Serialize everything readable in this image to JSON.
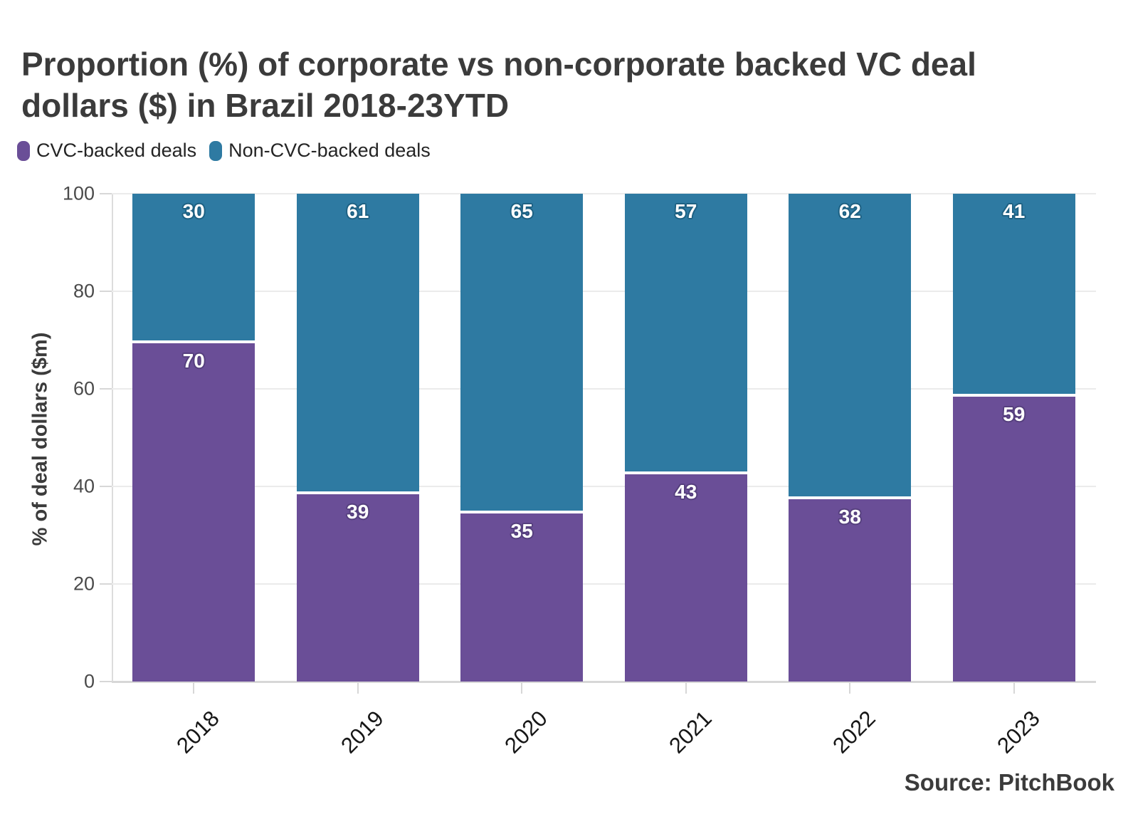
{
  "header": {
    "title_line1": "Proportion (%) of corporate vs non-corporate backed VC deal",
    "title_line2": "dollars ($) in Brazil 2018-23YTD"
  },
  "chart_data": {
    "type": "bar",
    "stacked": true,
    "title": "Proportion (%) of corporate vs non-corporate backed VC deal dollars ($) in Brazil 2018-23YTD",
    "categories": [
      "2018",
      "2019",
      "2020",
      "2021",
      "2022",
      "2023"
    ],
    "series": [
      {
        "name": "CVC-backed deals",
        "color": "#6a4e97",
        "label_halo": "#56407e",
        "values": [
          70,
          39,
          35,
          43,
          38,
          59
        ]
      },
      {
        "name": "Non-CVC-backed deals",
        "color": "#2e7aa2",
        "label_halo": "#1e6183",
        "values": [
          30,
          61,
          65,
          57,
          62,
          41
        ]
      }
    ],
    "xlabel": "",
    "ylabel": "% of deal dollars ($m)",
    "ylim": [
      0,
      100
    ],
    "yticks": [
      0,
      20,
      40,
      60,
      80,
      100
    ],
    "grid": true,
    "legend_position": "top-left",
    "value_label_color": "#ffffff",
    "segment_separator_color": "#ffffff"
  },
  "footer": {
    "source": "Source: PitchBook"
  }
}
